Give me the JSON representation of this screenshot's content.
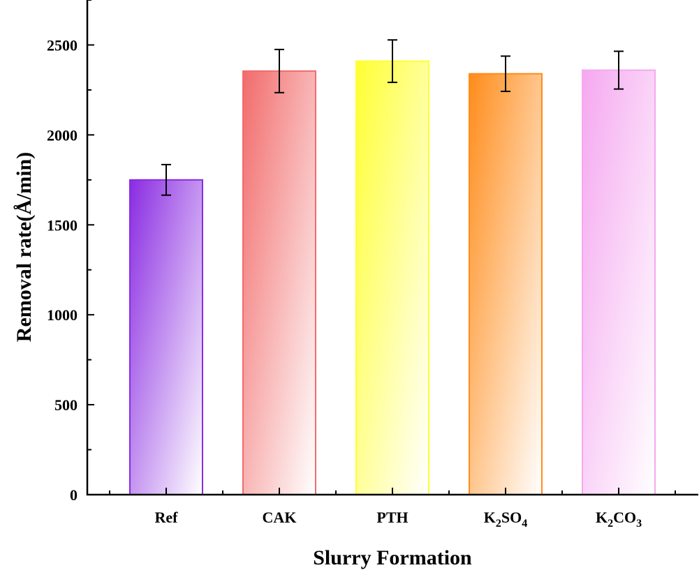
{
  "chart_data": {
    "type": "bar",
    "title": "",
    "xlabel": "Slurry Formation",
    "ylabel": "Removal rate(Å/min)",
    "ylim": [
      0,
      2750
    ],
    "yticks": [
      0,
      500,
      1000,
      1500,
      2000,
      2500
    ],
    "grid": false,
    "categories": [
      {
        "base": "Ref"
      },
      {
        "base": "CAK"
      },
      {
        "base": "PTH"
      },
      {
        "parts": [
          {
            "t": "K"
          },
          {
            "t": "2",
            "sub": true
          },
          {
            "t": "SO"
          },
          {
            "t": "4",
            "sub": true
          }
        ]
      },
      {
        "parts": [
          {
            "t": "K"
          },
          {
            "t": "2",
            "sub": true
          },
          {
            "t": "CO"
          },
          {
            "t": "3",
            "sub": true
          }
        ]
      }
    ],
    "category_text": [
      "Ref",
      "CAK",
      "PTH",
      "K2SO4",
      "K2CO3"
    ],
    "values": [
      1750,
      2355,
      2410,
      2340,
      2360
    ],
    "errors": [
      85,
      120,
      118,
      98,
      105
    ],
    "colors": [
      "#8a2be2",
      "#f26b6b",
      "#ffff33",
      "#ff8c1a",
      "#f5a8f0"
    ]
  }
}
